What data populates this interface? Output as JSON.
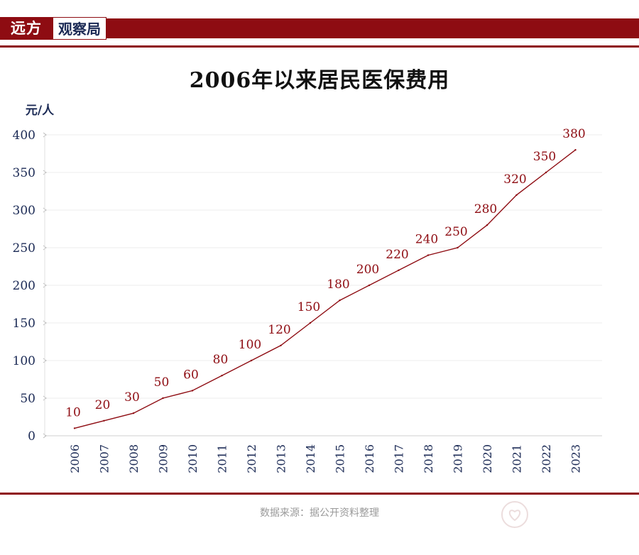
{
  "brand": {
    "left": "远方",
    "right": "观察局"
  },
  "title": "2006年以来居民医保费用",
  "source": "数据来源：据公开资料整理",
  "colors": {
    "accent": "#8e0c12",
    "axis_text": "#1b2a55",
    "line": "#8e0c12"
  },
  "chart_data": {
    "type": "line",
    "title": "2006年以来居民医保费用",
    "ylabel": "元/人",
    "xlabel": "",
    "ylim": [
      0,
      400
    ],
    "yticks": [
      0,
      50,
      100,
      150,
      200,
      250,
      300,
      350,
      400
    ],
    "grid": true,
    "categories": [
      "2006",
      "2007",
      "2008",
      "2009",
      "2010",
      "2011",
      "2012",
      "2013",
      "2014",
      "2015",
      "2016",
      "2017",
      "2018",
      "2019",
      "2020",
      "2021",
      "2022",
      "2023"
    ],
    "values": [
      10,
      20,
      30,
      50,
      60,
      80,
      100,
      120,
      150,
      180,
      200,
      220,
      240,
      250,
      280,
      320,
      350,
      380
    ]
  }
}
